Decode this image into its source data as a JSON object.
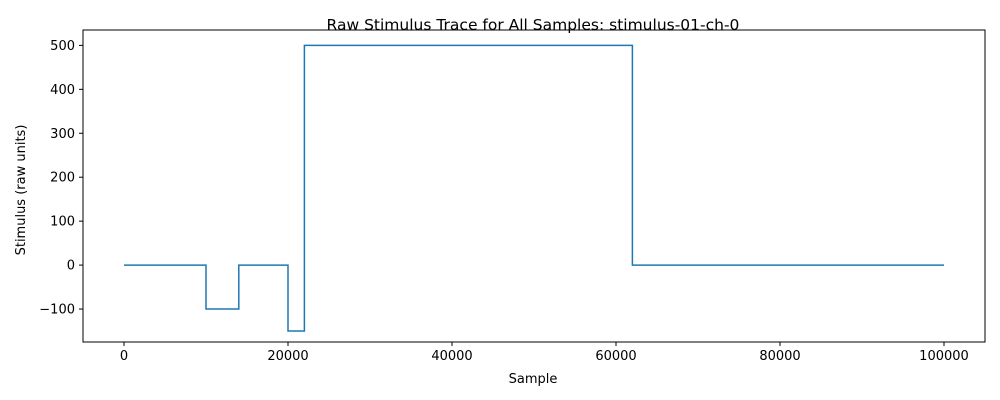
{
  "chart_data": {
    "type": "line",
    "title": "Raw Stimulus Trace for All Samples: stimulus-01-ch-0",
    "xlabel": "Sample",
    "ylabel": "Stimulus (raw units)",
    "xlim": [
      -5000,
      105000
    ],
    "ylim": [
      -175,
      535
    ],
    "xticks": [
      0,
      20000,
      40000,
      60000,
      80000,
      100000
    ],
    "xtick_labels": [
      "0",
      "20000",
      "40000",
      "60000",
      "80000",
      "100000"
    ],
    "yticks": [
      -100,
      0,
      100,
      200,
      300,
      400,
      500
    ],
    "ytick_labels": [
      "−100",
      "0",
      "100",
      "200",
      "300",
      "400",
      "500"
    ],
    "grid": false,
    "legend": "none",
    "series": [
      {
        "color": "#1f77b4",
        "x": [
          0,
          10000,
          10000,
          14000,
          14000,
          20000,
          20000,
          22000,
          22000,
          62000,
          62000,
          100000
        ],
        "y": [
          0,
          0,
          -100,
          -100,
          0,
          0,
          -150,
          -150,
          500,
          500,
          0,
          0
        ]
      }
    ]
  }
}
